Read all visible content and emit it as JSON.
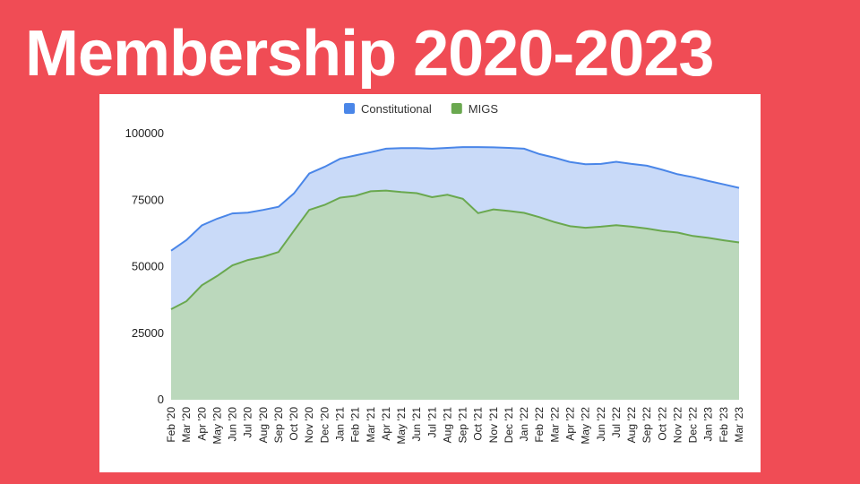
{
  "slide": {
    "title": "Membership 2020-2023"
  },
  "chart_data": {
    "type": "area",
    "legend_position": "top",
    "grid": false,
    "ylim": [
      0,
      100000
    ],
    "yticks": [
      0,
      25000,
      50000,
      75000,
      100000
    ],
    "categories": [
      "Feb '20",
      "Mar '20",
      "Apr '20",
      "May '20",
      "Jun '20",
      "Jul '20",
      "Aug '20",
      "Sep '20",
      "Oct '20",
      "Nov '20",
      "Dec '20",
      "Jan '21",
      "Feb '21",
      "Mar '21",
      "Apr '21",
      "May '21",
      "Jun '21",
      "Jul '21",
      "Aug '21",
      "Sep '21",
      "Oct '21",
      "Nov '21",
      "Dec '21",
      "Jan '22",
      "Feb '22",
      "Mar '22",
      "Apr '22",
      "May '22",
      "Jun '22",
      "Jul '22",
      "Aug '22",
      "Sep '22",
      "Oct '22",
      "Nov '22",
      "Dec '22",
      "Jan '23",
      "Feb '23",
      "Mar '23"
    ],
    "series": [
      {
        "name": "Constitutional",
        "line_color": "#4a86e8",
        "fill_color": "#c9daf8",
        "values": [
          56000,
          60000,
          65500,
          68000,
          70000,
          70300,
          71300,
          72500,
          77500,
          85000,
          87500,
          90500,
          91800,
          93000,
          94300,
          94500,
          94500,
          94300,
          94600,
          94900,
          94900,
          94800,
          94600,
          94300,
          92300,
          90900,
          89300,
          88500,
          88600,
          89400,
          88600,
          87900,
          86400,
          84700,
          83600,
          82200,
          80900,
          79600
        ]
      },
      {
        "name": "MIGS",
        "line_color": "#6aa84f",
        "fill_color": "#b6d7a8",
        "values": [
          34000,
          37000,
          43000,
          46500,
          50500,
          52500,
          53700,
          55500,
          63500,
          71300,
          73200,
          75900,
          76600,
          78300,
          78600,
          78000,
          77600,
          76100,
          77000,
          75500,
          70100,
          71500,
          70900,
          70200,
          68600,
          66700,
          65200,
          64600,
          65000,
          65600,
          65000,
          64300,
          63400,
          62800,
          61500,
          60800,
          59900,
          59100
        ]
      }
    ]
  }
}
